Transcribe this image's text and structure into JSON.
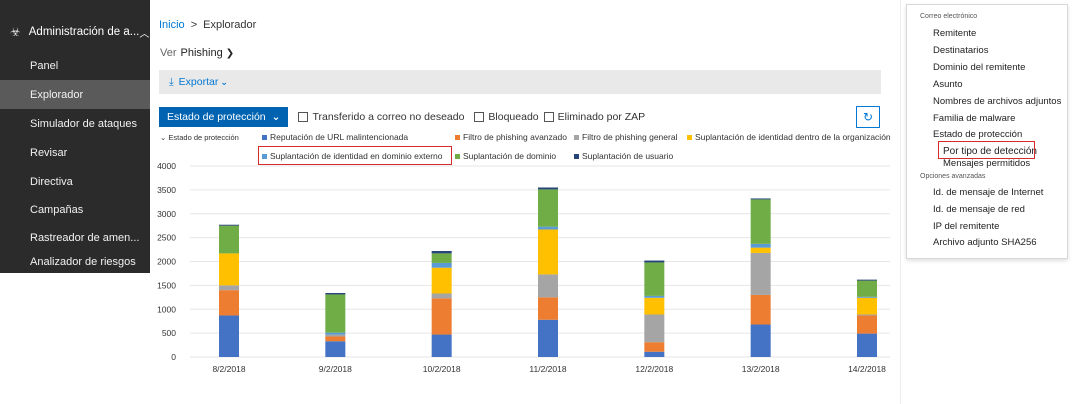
{
  "sidebar": {
    "header": "Administración de a...",
    "items": [
      {
        "label": "Panel",
        "active": false
      },
      {
        "label": "Explorador",
        "active": true
      },
      {
        "label": "Simulador de ataques",
        "active": false
      },
      {
        "label": "Revisar",
        "active": false
      },
      {
        "label": "Directiva",
        "active": false
      },
      {
        "label": "Campañas",
        "active": false
      },
      {
        "label": "Rastreador de amen...",
        "active": false
      },
      {
        "label": "Analizador de riesgos",
        "active": false
      }
    ]
  },
  "breadcrumb": {
    "home": "Inicio",
    "current": "Explorador",
    "separator": ">"
  },
  "view": {
    "label": "Ver",
    "value": "Phishing"
  },
  "toolbar": {
    "export": "Exportar",
    "protection_button": "Estado de protección",
    "checkboxes": [
      "Transferido a correo no deseado",
      "Bloqueado",
      "Eliminado por ZAP"
    ]
  },
  "legend": {
    "toggle": "Estado de protección",
    "entries": [
      {
        "name": "Reputación de URL malintencionada",
        "color": "#4472c4"
      },
      {
        "name": "Filtro de phishing avanzado",
        "color": "#ed7d31"
      },
      {
        "name": "Filtro de phishing general",
        "color": "#a5a5a5"
      },
      {
        "name": "Suplantación de identidad dentro de la organización",
        "color": "#ffc000"
      },
      {
        "name": "Suplantación de identidad en dominio externo",
        "color": "#5b9bd5"
      },
      {
        "name": "Suplantación de dominio",
        "color": "#70ad47"
      },
      {
        "name": "Suplantación de usuario",
        "color": "#264478"
      }
    ]
  },
  "chart_data": {
    "type": "bar",
    "stacked": true,
    "categories": [
      "8/2/2018",
      "9/2/2018",
      "10/2/2018",
      "11/2/2018",
      "12/2/2018",
      "13/2/2018",
      "14/2/2018"
    ],
    "ylim": [
      0,
      4000
    ],
    "yticks": [
      0,
      500,
      1000,
      1500,
      2000,
      2500,
      3000,
      3500,
      4000
    ],
    "series": [
      {
        "name": "Reputación de URL malintencionada",
        "values": [
          870,
          330,
          470,
          780,
          110,
          680,
          490
        ]
      },
      {
        "name": "Filtro de phishing avanzado",
        "values": [
          530,
          100,
          760,
          470,
          200,
          620,
          380
        ]
      },
      {
        "name": "Filtro de phishing general",
        "values": [
          100,
          40,
          100,
          480,
          580,
          880,
          20
        ]
      },
      {
        "name": "Suplantación de identidad dentro de la organización",
        "values": [
          670,
          0,
          540,
          940,
          350,
          110,
          350
        ]
      },
      {
        "name": "Suplantación de identidad en dominio externo",
        "values": [
          0,
          40,
          100,
          60,
          40,
          80,
          20
        ]
      },
      {
        "name": "Suplantación de dominio",
        "values": [
          580,
          800,
          200,
          780,
          700,
          930,
          340
        ]
      },
      {
        "name": "Suplantación de usuario",
        "values": [
          20,
          30,
          50,
          40,
          40,
          20,
          20
        ]
      }
    ]
  },
  "right_panel": {
    "section1": "Correo electrónico",
    "items1": [
      "Remitente",
      "Destinatarios",
      "Dominio del remitente",
      "Asunto",
      "Nombres de archivos adjuntos",
      "Familia de malware",
      "Estado de protección",
      "Por tipo de detección",
      "Mensajes permitidos"
    ],
    "section2": "Opciones avanzadas",
    "items2": [
      "Id. de mensaje de Internet",
      "Id. de mensaje de red",
      "IP del remitente",
      "Archivo adjunto SHA256"
    ]
  }
}
